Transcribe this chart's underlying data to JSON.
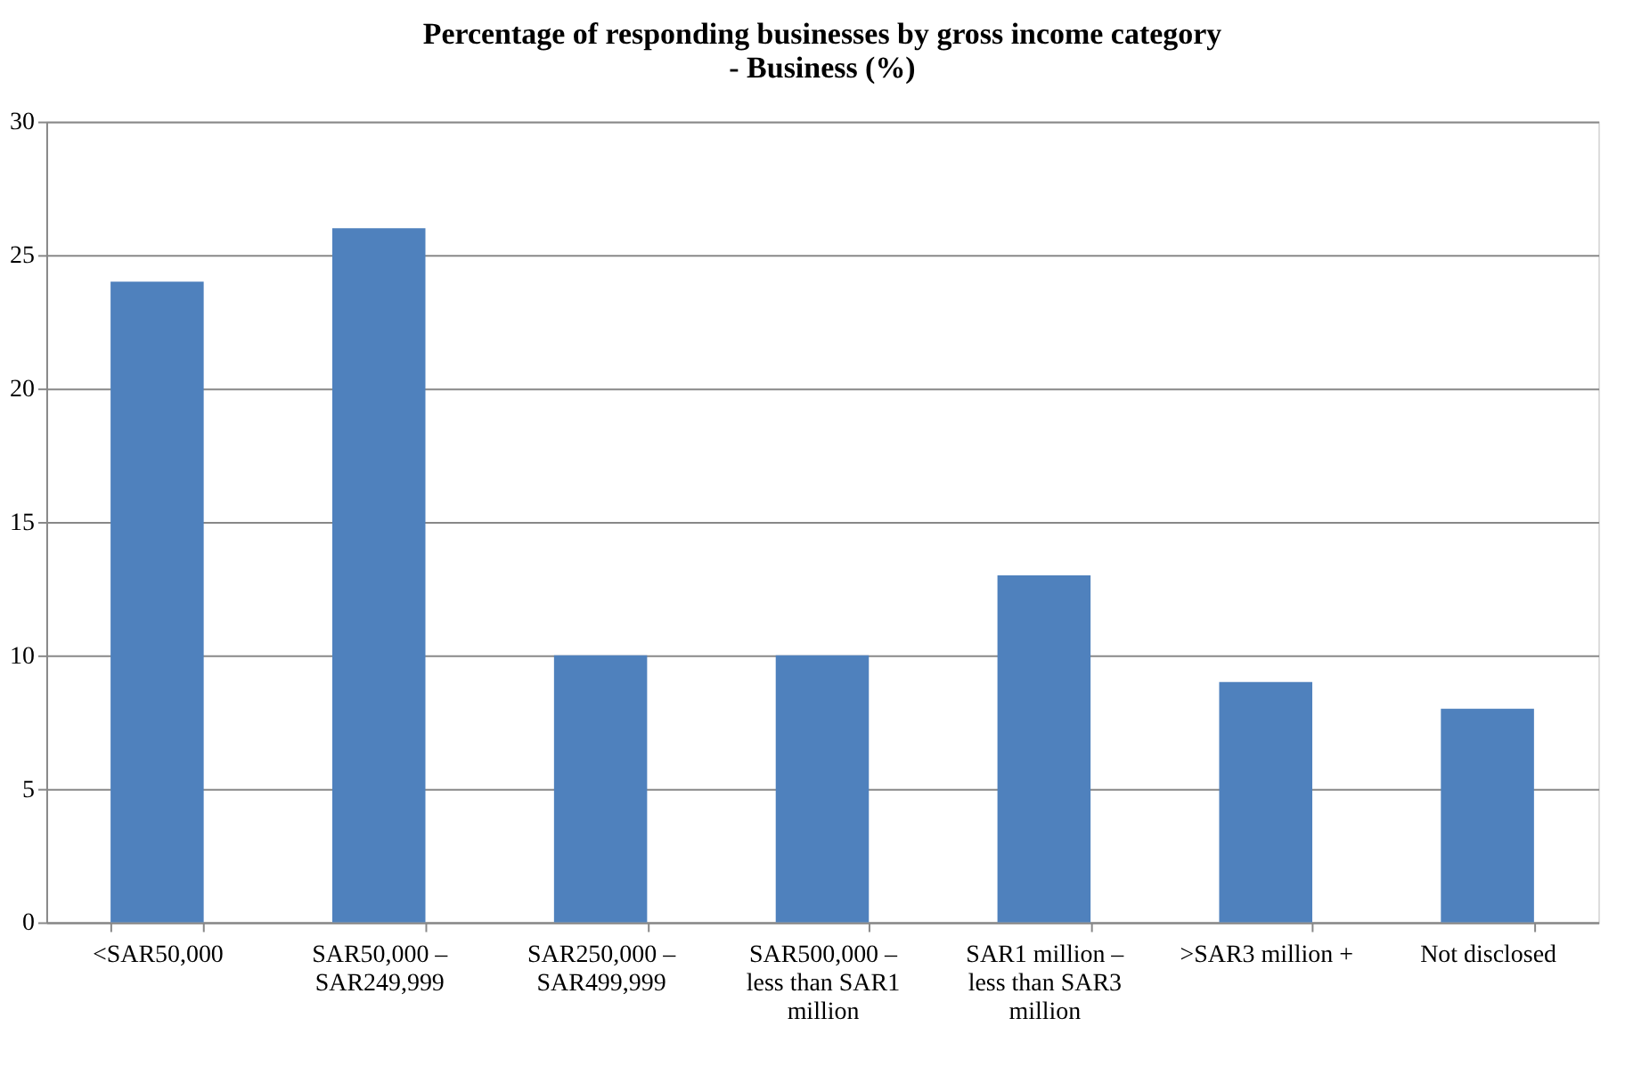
{
  "chart_data": {
    "type": "bar",
    "title": "Percentage of responding businesses by gross income category - Business (%)",
    "categories": [
      "<SAR50,000",
      "SAR50,000 – SAR249,999",
      "SAR250,000 – SAR499,999",
      "SAR500,000 – less than SAR1 million",
      "SAR1 million – less than SAR3 million",
      ">SAR3 million +",
      "Not disclosed"
    ],
    "values": [
      24,
      26,
      10,
      10,
      13,
      9,
      8
    ],
    "color": "#4f81bd",
    "ylim": [
      0,
      30
    ],
    "yticks": [
      0,
      5,
      10,
      15,
      20,
      25,
      30
    ],
    "grid": "y"
  }
}
